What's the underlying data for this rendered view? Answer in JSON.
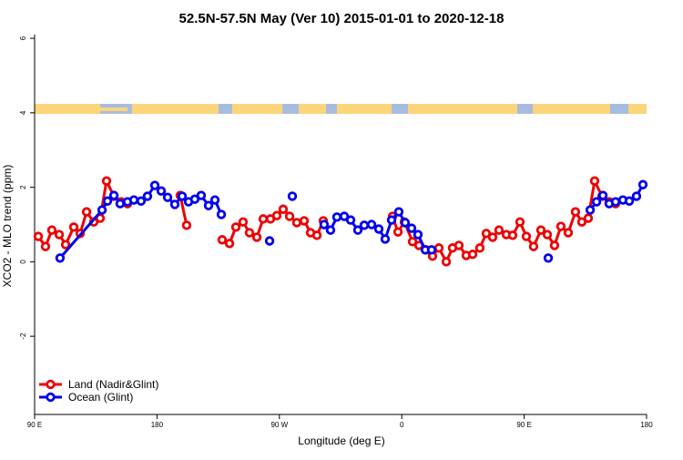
{
  "chart_data": {
    "type": "line",
    "title": "52.5N-57.5N May (Ver 10)   2015-01-01 to 2020-12-18",
    "xlabel": "Longitude (deg E)",
    "ylabel": "XCO2 - MLO trend (ppm)",
    "xlim": [
      90,
      540
    ],
    "xticks": [
      {
        "value": 90,
        "label": "90 E"
      },
      180,
      {
        "value": 270,
        "label": "90 W"
      },
      {
        "value": 360,
        "label": "0"
      },
      {
        "value": 450,
        "label": "90 E"
      },
      {
        "value": 540,
        "label": "180"
      }
    ],
    "ylim": [
      -4.1,
      6.1
    ],
    "yticks": [
      -2,
      0,
      2,
      4,
      6
    ],
    "legend": "bottom-left",
    "series": [
      {
        "name": "Land (Nadir&Glint)",
        "color": "#ee0000",
        "x": [
          92.7,
          98.0,
          102.7,
          108.1,
          112.8,
          118.8,
          123.5,
          128.2,
          133.5,
          138.2,
          142.9,
          148.3,
          153.6,
          158.3,
          null,
          197.1,
          201.8,
          null,
          227.9,
          233.3,
          238.0,
          243.3,
          248.0,
          253.4,
          258.1,
          263.4,
          268.1,
          272.8,
          277.5,
          282.8,
          288.2,
          292.9,
          297.6,
          302.3,
          null,
          353.2,
          357.2,
          361.9,
          367.9,
          372.6,
          377.9,
          382.6,
          387.3,
          392.7,
          397.3,
          402.0,
          407.4,
          412.1,
          417.4,
          422.1,
          426.8,
          431.5,
          436.9,
          441.5,
          446.9,
          451.6,
          456.9,
          462.3,
          467.0,
          472.3,
          477.0,
          482.4,
          487.7,
          492.4,
          497.1,
          501.8,
          507.2,
          512.5,
          517.2
        ],
        "values": [
          0.68,
          0.41,
          0.85,
          0.73,
          0.46,
          0.93,
          0.76,
          1.34,
          1.07,
          1.17,
          2.17,
          1.76,
          1.61,
          1.56,
          null,
          1.78,
          0.98,
          null,
          0.59,
          0.49,
          0.93,
          1.07,
          0.78,
          0.66,
          1.15,
          1.15,
          1.24,
          1.41,
          1.22,
          1.05,
          1.1,
          0.78,
          0.71,
          1.1,
          null,
          1.22,
          0.8,
          1.07,
          0.54,
          0.44,
          0.32,
          0.15,
          0.37,
          0,
          0.37,
          0.44,
          0.17,
          0.2,
          0.37,
          0.76,
          0.66,
          0.85,
          0.73,
          0.71,
          1.07,
          0.68,
          0.41,
          0.85,
          0.73,
          0.44,
          0.95,
          0.78,
          1.34,
          1.07,
          1.17,
          2.17,
          1.76,
          1.61,
          1.56
        ]
      },
      {
        "name": "Ocean (Glint)",
        "color": "#0000ee",
        "x": [
          108.7,
          139.6,
          143.6,
          148.3,
          152.9,
          158.3,
          163.0,
          168.3,
          173.0,
          178.4,
          183.1,
          187.8,
          193.1,
          198.5,
          203.2,
          207.8,
          212.5,
          217.9,
          222.6,
          227.3,
          null,
          262.8,
          null,
          279.5,
          null,
          302.9,
          307.6,
          312.3,
          317.7,
          322.4,
          327.7,
          332.4,
          337.8,
          343.1,
          347.8,
          352.5,
          357.8,
          362.5,
          367.2,
          371.9,
          377.3,
          381.9,
          null,
          467.7,
          null,
          498.5,
          503.2,
          507.9,
          512.5,
          517.2,
          522.6,
          527.3,
          532.6,
          537.3
        ],
        "values": [
          0.1,
          1.39,
          1.63,
          1.78,
          1.56,
          1.61,
          1.66,
          1.63,
          1.76,
          2.05,
          1.9,
          1.73,
          1.54,
          1.76,
          1.61,
          1.68,
          1.78,
          1.51,
          1.66,
          1.27,
          null,
          0.56,
          null,
          1.76,
          null,
          1.0,
          0.85,
          1.2,
          1.22,
          1.12,
          0.85,
          0.98,
          1.0,
          0.88,
          0.61,
          1.12,
          1.34,
          1.05,
          0.9,
          0.73,
          0.32,
          0.32,
          null,
          0.1,
          null,
          1.39,
          1.61,
          1.78,
          1.56,
          1.61,
          1.66,
          1.63,
          1.76,
          2.07
        ]
      }
    ]
  }
}
